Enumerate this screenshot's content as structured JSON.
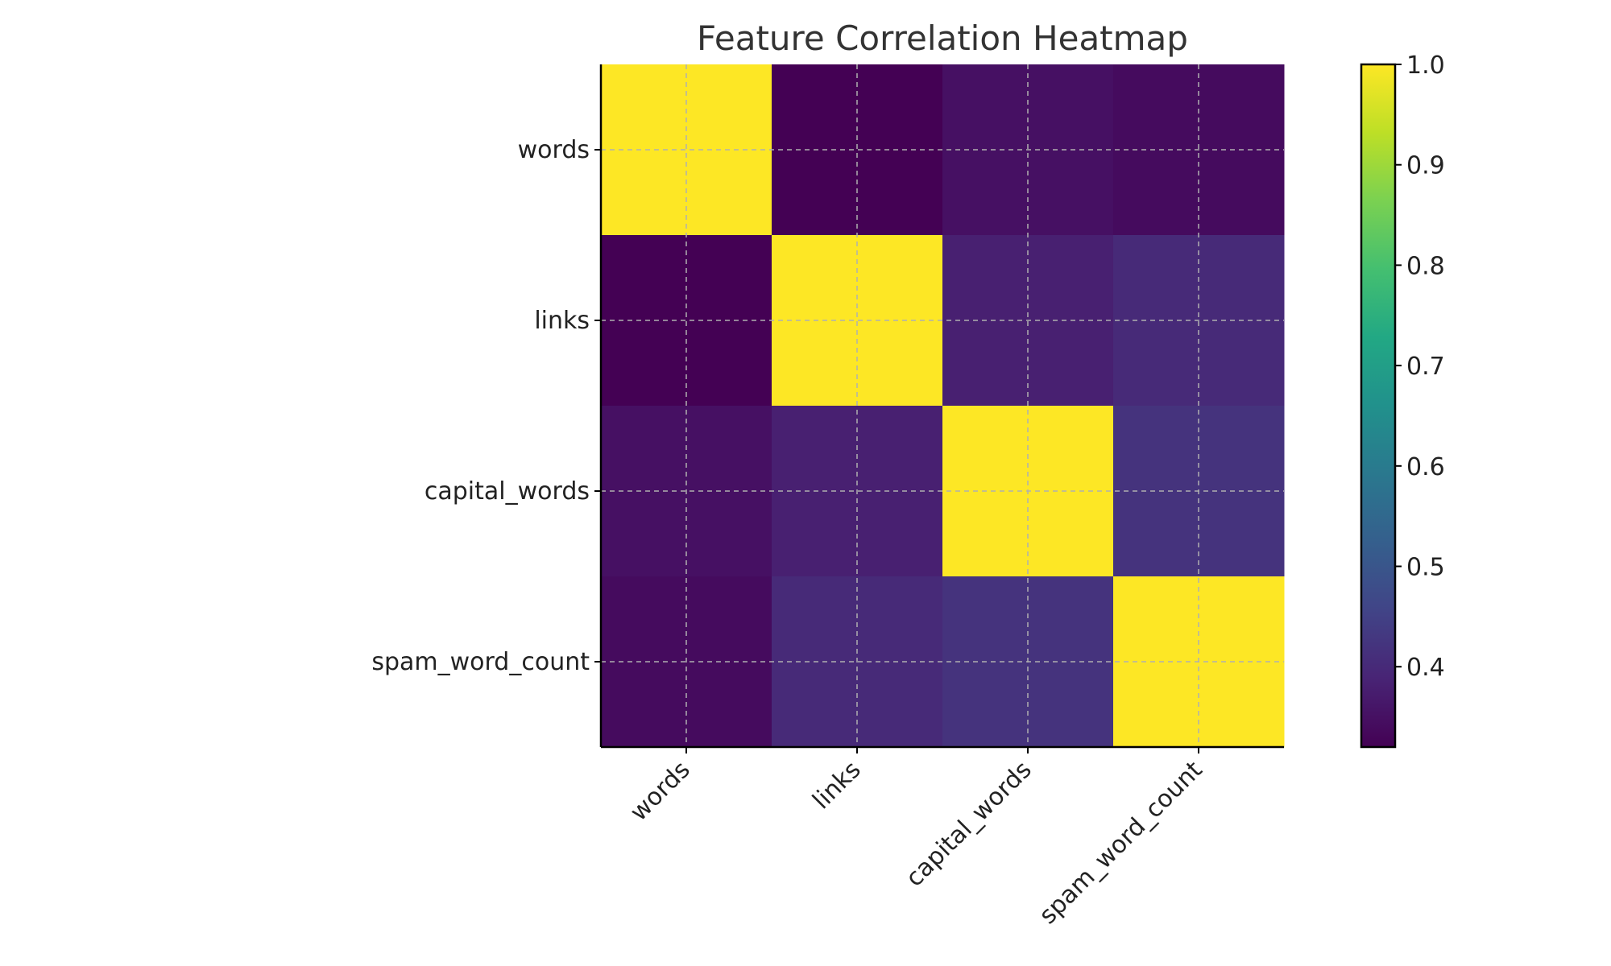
{
  "chart_data": {
    "type": "heatmap",
    "title": "Feature Correlation Heatmap",
    "xlabel": "",
    "ylabel": "",
    "rows": [
      "words",
      "links",
      "capital_words",
      "spam_word_count"
    ],
    "columns": [
      "words",
      "links",
      "capital_words",
      "spam_word_count"
    ],
    "values": [
      [
        1.0,
        0.32,
        0.35,
        0.34
      ],
      [
        0.32,
        1.0,
        0.38,
        0.4
      ],
      [
        0.35,
        0.38,
        1.0,
        0.42
      ],
      [
        0.34,
        0.4,
        0.42,
        1.0
      ]
    ],
    "colormap": "viridis",
    "colorbar": {
      "vmin": 0.32,
      "vmax": 1.0,
      "ticks": [
        0.4,
        0.5,
        0.6,
        0.7,
        0.8,
        0.9,
        1.0
      ],
      "tick_labels": [
        "0.4",
        "0.5",
        "0.6",
        "0.7",
        "0.8",
        "0.9",
        "1.0"
      ]
    },
    "grid": true,
    "x_tick_rotation": "45 degrees"
  }
}
